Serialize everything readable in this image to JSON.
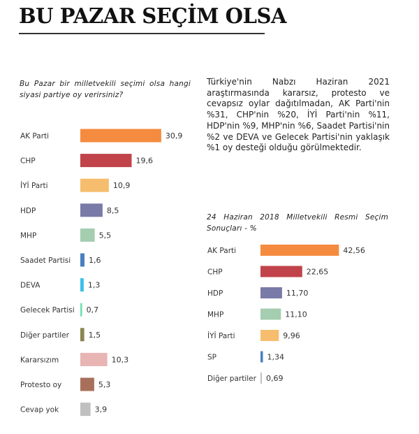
{
  "header": {
    "title": "BU PAZAR SEÇİM OLSA"
  },
  "description": "Türkiye'nin Nabzı Haziran 2021 araştırmasında kararsız, protesto ve cevapsız oylar dağıtılmadan, AK Parti'nin %31, CHP'nin %20, İYİ Parti'nin %11, HDP'nin %9, MHP'nin %6, Saadet Partisi'nin %2 ve DEVA ve Gelecek Partisi'nin yaklaşık %1 oy desteği olduğu görülmektedir.",
  "chart_data": [
    {
      "type": "bar",
      "orientation": "horizontal",
      "title": "Bu Pazar bir milletvekili seçimi olsa hangi siyasi partiye oy verirsiniz?",
      "categories": [
        "AK Parti",
        "CHP",
        "İYİ Parti",
        "HDP",
        "MHP",
        "Saadet Partisi",
        "DEVA",
        "Gelecek Partisi",
        "Diğer partiler",
        "Kararsızım",
        "Protesto oy",
        "Cevap yok"
      ],
      "values": [
        30.9,
        19.6,
        10.9,
        8.5,
        5.5,
        1.6,
        1.3,
        0.7,
        1.5,
        10.3,
        5.3,
        3.9
      ],
      "labels": [
        "30,9",
        "19,6",
        "10,9",
        "8,5",
        "5,5",
        "1,6",
        "1,3",
        "0,7",
        "1,5",
        "10,3",
        "5,3",
        "3,9"
      ],
      "colors": [
        "#f58b3f",
        "#c0444a",
        "#f7bd6e",
        "#7a7aa8",
        "#a5cdb0",
        "#4a7fc0",
        "#3cc0e8",
        "#6fe0b0",
        "#8a8450",
        "#e8b4b4",
        "#a8705a",
        "#c0c0c0"
      ]
    },
    {
      "type": "bar",
      "orientation": "horizontal",
      "title": "24 Haziran 2018 Milletvekili Resmi Seçim Sonuçları - %",
      "categories": [
        "AK Parti",
        "CHP",
        "HDP",
        "MHP",
        "İYİ Parti",
        "SP",
        "Diğer partiler"
      ],
      "values": [
        42.56,
        22.65,
        11.7,
        11.1,
        9.96,
        1.34,
        0.69
      ],
      "labels": [
        "42,56",
        "22,65",
        "11,70",
        "11,10",
        "9,96",
        "1,34",
        "0,69"
      ],
      "colors": [
        "#f58b3f",
        "#c0444a",
        "#7a7aa8",
        "#a5cdb0",
        "#f7bd6e",
        "#4a7fc0",
        "#c0c0c0"
      ]
    }
  ]
}
